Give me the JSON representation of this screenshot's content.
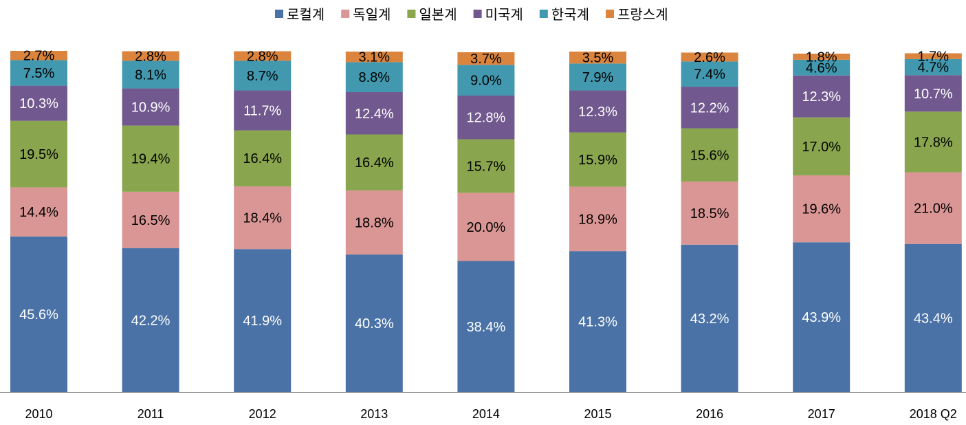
{
  "chart_data": {
    "type": "bar",
    "stacked": true,
    "title": "",
    "xlabel": "",
    "ylabel": "",
    "ylim": [
      0,
      100
    ],
    "grid": false,
    "legend_position": "top-center",
    "categories": [
      "2010",
      "2011",
      "2012",
      "2013",
      "2014",
      "2015",
      "2016",
      "2017",
      "2018 Q2"
    ],
    "series": [
      {
        "name": "로컬계",
        "color": "#4a72a6",
        "label_color": "#ffffff",
        "values": [
          45.6,
          42.2,
          41.9,
          40.3,
          38.4,
          41.3,
          43.2,
          43.9,
          43.4
        ]
      },
      {
        "name": "독일계",
        "color": "#da9694",
        "label_color": "#000000",
        "values": [
          14.4,
          16.5,
          18.4,
          18.8,
          20.0,
          18.9,
          18.5,
          19.6,
          21.0
        ]
      },
      {
        "name": "일본계",
        "color": "#89a54e",
        "label_color": "#000000",
        "values": [
          19.5,
          19.4,
          16.4,
          16.4,
          15.7,
          15.9,
          15.6,
          17.0,
          17.8
        ]
      },
      {
        "name": "미국계",
        "color": "#71588f",
        "label_color": "#ffffff",
        "values": [
          10.3,
          10.9,
          11.7,
          12.4,
          12.8,
          12.3,
          12.2,
          12.3,
          10.7
        ]
      },
      {
        "name": "한국계",
        "color": "#4198af",
        "label_color": "#000000",
        "values": [
          7.5,
          8.1,
          8.7,
          8.8,
          9.0,
          7.9,
          7.4,
          4.6,
          4.7
        ]
      },
      {
        "name": "프랑스계",
        "color": "#db843d",
        "label_color": "#000000",
        "values": [
          2.7,
          2.8,
          2.8,
          3.1,
          3.7,
          3.5,
          2.6,
          1.8,
          1.7
        ]
      }
    ],
    "value_suffix": "%"
  }
}
